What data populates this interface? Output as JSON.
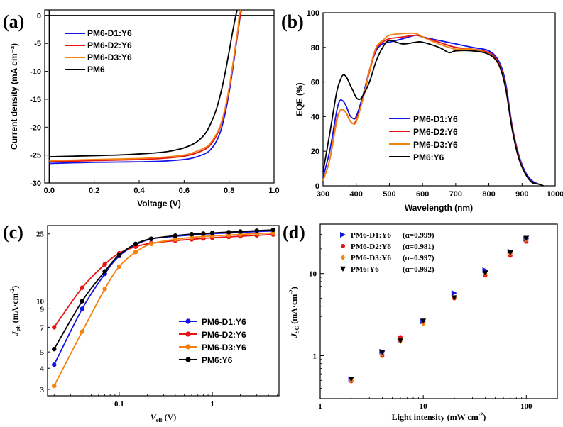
{
  "chart_data": [
    {
      "panel": "(a)",
      "type": "line",
      "xlabel": "Voltage (V)",
      "ylabel": "Current density (mA cm⁻²)",
      "xlim": [
        -0.02,
        1.0
      ],
      "ylim": [
        -30,
        1
      ],
      "xticks": [
        "0.0",
        "0.2",
        "0.4",
        "0.6",
        "0.8",
        "1.0"
      ],
      "yticks": [
        "0",
        "-5",
        "-10",
        "-15",
        "-20",
        "-25",
        "-30"
      ],
      "ytick_values": [
        0,
        -5,
        -10,
        -15,
        -20,
        -25,
        -30
      ],
      "xtick_values": [
        0,
        0.2,
        0.4,
        0.6,
        0.8,
        1.0
      ],
      "legend": [
        "PM6-D1:Y6",
        "PM6-D2:Y6",
        "PM6-D3:Y6",
        "PM6"
      ],
      "series": [
        {
          "name": "PM6-D1:Y6",
          "color": "#1414e6",
          "voc": 0.855,
          "jsc": -26.5,
          "x": [
            0.0,
            0.1,
            0.2,
            0.3,
            0.4,
            0.5,
            0.6,
            0.65,
            0.7,
            0.72,
            0.74,
            0.76,
            0.78,
            0.8,
            0.82,
            0.83,
            0.84,
            0.85,
            0.855
          ],
          "y": [
            -26.5,
            -26.4,
            -26.3,
            -26.25,
            -26.2,
            -26.1,
            -25.8,
            -25.4,
            -24.6,
            -23.9,
            -22.8,
            -21.0,
            -18.0,
            -13.8,
            -8.5,
            -5.5,
            -2.8,
            0.0,
            1.0
          ]
        },
        {
          "name": "PM6-D2:Y6",
          "color": "#e61414",
          "voc": 0.855,
          "jsc": -26.2,
          "x": [
            0.0,
            0.1,
            0.2,
            0.3,
            0.4,
            0.5,
            0.6,
            0.65,
            0.7,
            0.72,
            0.74,
            0.76,
            0.78,
            0.8,
            0.82,
            0.83,
            0.84,
            0.85,
            0.856
          ],
          "y": [
            -26.2,
            -26.1,
            -26.0,
            -25.9,
            -25.8,
            -25.6,
            -25.2,
            -24.7,
            -23.8,
            -23.0,
            -21.8,
            -20.0,
            -17.2,
            -13.2,
            -8.0,
            -5.2,
            -2.5,
            0.0,
            1.0
          ]
        },
        {
          "name": "PM6-D3:Y6",
          "color": "#f5820f",
          "voc": 0.85,
          "jsc": -26.0,
          "x": [
            0.0,
            0.1,
            0.2,
            0.3,
            0.4,
            0.5,
            0.6,
            0.65,
            0.7,
            0.72,
            0.74,
            0.76,
            0.78,
            0.8,
            0.82,
            0.83,
            0.84,
            0.845,
            0.852
          ],
          "y": [
            -26.0,
            -25.9,
            -25.8,
            -25.7,
            -25.6,
            -25.4,
            -25.0,
            -24.4,
            -23.5,
            -22.7,
            -21.5,
            -19.8,
            -17.0,
            -13.0,
            -7.8,
            -5.0,
            -2.2,
            0.0,
            1.0
          ]
        },
        {
          "name": "PM6",
          "color": "#000000",
          "voc": 0.83,
          "jsc": -25.3,
          "x": [
            0.0,
            0.1,
            0.2,
            0.3,
            0.4,
            0.5,
            0.55,
            0.6,
            0.65,
            0.68,
            0.7,
            0.72,
            0.74,
            0.76,
            0.78,
            0.8,
            0.81,
            0.82,
            0.83,
            0.836
          ],
          "y": [
            -25.3,
            -25.2,
            -25.1,
            -25.0,
            -24.8,
            -24.5,
            -24.2,
            -23.7,
            -22.8,
            -21.8,
            -20.8,
            -19.2,
            -17.2,
            -14.4,
            -10.8,
            -6.5,
            -4.2,
            -2.0,
            0.0,
            1.0
          ]
        }
      ]
    },
    {
      "panel": "(b)",
      "type": "line",
      "xlabel": "Wavelength (nm)",
      "ylabel": "EQE (%)",
      "xlim": [
        300,
        1000
      ],
      "ylim": [
        0,
        100
      ],
      "xticks": [
        "300",
        "400",
        "500",
        "600",
        "700",
        "800",
        "900",
        "1000"
      ],
      "xtick_values": [
        300,
        400,
        500,
        600,
        700,
        800,
        900,
        1000
      ],
      "yticks": [
        "0",
        "20",
        "40",
        "60",
        "80",
        "100"
      ],
      "ytick_values": [
        0,
        20,
        40,
        60,
        80,
        100
      ],
      "legend": [
        "PM6-D1:Y6",
        "PM6-D2:Y6",
        "PM6-D3:Y6",
        "PM6:Y6"
      ],
      "series": [
        {
          "name": "PM6-D1:Y6",
          "color": "#1414e6",
          "x": [
            300,
            320,
            340,
            350,
            360,
            370,
            380,
            390,
            400,
            420,
            440,
            460,
            480,
            500,
            540,
            580,
            600,
            650,
            700,
            750,
            800,
            830,
            850,
            870,
            890,
            910,
            930,
            950,
            965
          ],
          "y": [
            5,
            20,
            42,
            49,
            49,
            46,
            41,
            39,
            40,
            52,
            67,
            78,
            82,
            83,
            85,
            87,
            86,
            84,
            82,
            80,
            78,
            72,
            60,
            35,
            18,
            8,
            3,
            1,
            0
          ]
        },
        {
          "name": "PM6-D2:Y6",
          "color": "#e61414",
          "x": [
            300,
            320,
            340,
            350,
            360,
            370,
            380,
            390,
            400,
            420,
            440,
            460,
            480,
            500,
            540,
            580,
            600,
            650,
            700,
            750,
            800,
            830,
            850,
            870,
            890,
            910,
            930,
            950,
            965
          ],
          "y": [
            3,
            15,
            37,
            43,
            44,
            42,
            38,
            36,
            38,
            50,
            66,
            79,
            83,
            85,
            86,
            87,
            86,
            83,
            80,
            79,
            77,
            71,
            58,
            34,
            17,
            7,
            2,
            1,
            0
          ]
        },
        {
          "name": "PM6-D3:Y6",
          "color": "#f5820f",
          "x": [
            300,
            320,
            340,
            350,
            360,
            370,
            380,
            390,
            400,
            420,
            440,
            460,
            480,
            500,
            540,
            580,
            600,
            650,
            700,
            750,
            800,
            830,
            850,
            870,
            890,
            910,
            930,
            950,
            965
          ],
          "y": [
            3,
            15,
            36,
            43,
            44,
            42,
            38,
            36,
            37,
            50,
            67,
            80,
            84,
            87,
            88,
            88,
            86,
            82,
            79,
            79,
            76,
            70,
            57,
            33,
            16,
            7,
            2,
            1,
            0
          ]
        },
        {
          "name": "PM6:Y6",
          "color": "#000000",
          "x": [
            300,
            320,
            340,
            350,
            360,
            370,
            380,
            390,
            400,
            410,
            420,
            440,
            460,
            480,
            500,
            540,
            580,
            600,
            650,
            680,
            700,
            750,
            800,
            830,
            850,
            870,
            890,
            910,
            930,
            950,
            965
          ],
          "y": [
            8,
            30,
            53,
            60,
            64,
            63,
            59,
            55,
            51,
            50,
            52,
            60,
            72,
            80,
            84,
            82,
            83,
            83,
            80,
            77,
            78,
            78,
            76,
            70,
            57,
            33,
            16,
            7,
            2,
            1,
            0
          ]
        }
      ]
    },
    {
      "panel": "(c)",
      "type": "line",
      "scale": "log-log",
      "xlabel": "V",
      "xlabel_sub": "eff",
      "xlabel_unit": " (V)",
      "ylabel": "J",
      "ylabel_sub": "ph",
      "ylabel_unit": " (mA·cm",
      "ylabel_sup": "-2",
      "ylabel_end": ")",
      "xlim": [
        0.017,
        5.2
      ],
      "ylim": [
        2.75,
        28
      ],
      "xticks": [
        "0.1",
        "1"
      ],
      "xtick_values": [
        0.1,
        1
      ],
      "yticks": [
        "3",
        "4",
        "5",
        "7",
        "9",
        "10",
        "25"
      ],
      "ytick_values": [
        3,
        4,
        5,
        7,
        9,
        10,
        25
      ],
      "legend": [
        "PM6-D1:Y6",
        "PM6-D2:Y6",
        "PM6-D3:Y6",
        "PM6:Y6"
      ],
      "series": [
        {
          "name": "PM6-D1:Y6",
          "color": "#1414e6",
          "x": [
            0.02,
            0.04,
            0.07,
            0.1,
            0.15,
            0.22,
            0.4,
            0.6,
            0.8,
            1,
            1.5,
            2,
            3,
            4.5
          ],
          "y": [
            4.2,
            9.0,
            14.5,
            18.5,
            21.5,
            23.3,
            24.2,
            24.6,
            24.9,
            25.1,
            25.3,
            25.5,
            25.8,
            26.0
          ]
        },
        {
          "name": "PM6-D2:Y6",
          "color": "#e61414",
          "x": [
            0.02,
            0.04,
            0.07,
            0.1,
            0.15,
            0.22,
            0.4,
            0.6,
            0.8,
            1,
            1.5,
            2,
            3,
            4.5
          ],
          "y": [
            7.0,
            12.0,
            16.5,
            19.2,
            21.0,
            22.0,
            22.8,
            23.2,
            23.5,
            23.7,
            24.0,
            24.2,
            24.5,
            24.8
          ]
        },
        {
          "name": "PM6-D3:Y6",
          "color": "#f5820f",
          "x": [
            0.02,
            0.04,
            0.07,
            0.1,
            0.15,
            0.22,
            0.4,
            0.6,
            0.8,
            1,
            1.5,
            2,
            3,
            4.5
          ],
          "y": [
            3.15,
            6.6,
            11.8,
            16.0,
            19.5,
            21.8,
            23.2,
            23.8,
            24.1,
            24.3,
            24.6,
            24.8,
            25.1,
            25.3
          ]
        },
        {
          "name": "PM6:Y6",
          "color": "#000000",
          "x": [
            0.02,
            0.04,
            0.07,
            0.1,
            0.15,
            0.22,
            0.4,
            0.6,
            0.8,
            1,
            1.5,
            2,
            3,
            4.5
          ],
          "y": [
            5.2,
            10.0,
            15.0,
            18.8,
            21.8,
            23.4,
            24.4,
            24.9,
            25.1,
            25.3,
            25.6,
            25.8,
            26.1,
            26.4
          ]
        }
      ]
    },
    {
      "panel": "(d)",
      "type": "scatter",
      "scale": "log-log",
      "xlabel": "Light intensity (mW cm",
      "xlabel_sup": "-2",
      "xlabel_end": ")",
      "ylabel": "J",
      "ylabel_sub": "SC",
      "ylabel_unit": " (mA·cm",
      "ylabel_sup": "-2",
      "ylabel_end": ")",
      "xlim": [
        1,
        200
      ],
      "ylim": [
        0.3,
        40
      ],
      "xticks": [
        "1",
        "10",
        "100"
      ],
      "xtick_values": [
        1,
        10,
        100
      ],
      "yticks": [
        "1",
        "10"
      ],
      "ytick_values": [
        1,
        10
      ],
      "legend": [
        {
          "name": "PM6-D1:Y6",
          "alpha_label": "(α=0.999)"
        },
        {
          "name": "PM6-D2:Y6",
          "alpha_label": "(α=0.981)"
        },
        {
          "name": "PM6-D3:Y6",
          "alpha_label": "(α=0.997)"
        },
        {
          "name": "PM6:Y6",
          "alpha_label": "(α=0.992)"
        }
      ],
      "series": [
        {
          "name": "PM6-D1:Y6",
          "color": "#1414e6",
          "marker": "triangle-right",
          "x": [
            2,
            4,
            6,
            10,
            20,
            40,
            70,
            100
          ],
          "y": [
            0.52,
            1.12,
            1.55,
            2.62,
            5.8,
            11.0,
            18.5,
            26.5
          ]
        },
        {
          "name": "PM6-D2:Y6",
          "color": "#e61414",
          "marker": "circle",
          "x": [
            2,
            4,
            6,
            10,
            20,
            40,
            70,
            100
          ],
          "y": [
            0.49,
            1.0,
            1.68,
            2.55,
            5.0,
            9.5,
            16.5,
            24.5
          ]
        },
        {
          "name": "PM6-D3:Y6",
          "color": "#f5820f",
          "marker": "diamond",
          "x": [
            2,
            4,
            6,
            10,
            20,
            40,
            70,
            100
          ],
          "y": [
            0.5,
            1.05,
            1.5,
            2.45,
            5.1,
            10.0,
            17.5,
            26.0
          ]
        },
        {
          "name": "PM6:Y6",
          "color": "#000000",
          "marker": "triangle-down",
          "x": [
            2,
            4,
            6,
            10,
            20,
            40,
            70,
            100
          ],
          "y": [
            0.52,
            1.1,
            1.52,
            2.65,
            5.1,
            10.2,
            18.0,
            27.0
          ]
        }
      ]
    }
  ]
}
